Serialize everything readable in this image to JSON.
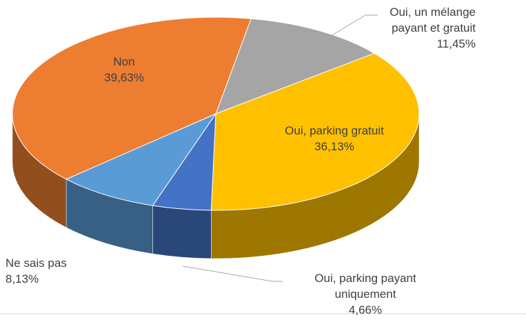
{
  "chart_data": {
    "type": "pie3d",
    "categories": [
      "Oui, un mélange payant et gratuit",
      "Oui, parking gratuit",
      "Oui, parking payant uniquement",
      "Ne sais pas",
      "Non"
    ],
    "values": [
      11.45,
      36.13,
      4.66,
      8.13,
      39.63
    ],
    "value_labels": [
      "11,45%",
      "36,13%",
      "4,66%",
      "8,13%",
      "39,63%"
    ],
    "colors": [
      "#A5A5A5",
      "#FFC000",
      "#4472C4",
      "#5B9BD5",
      "#ED7D31"
    ]
  }
}
